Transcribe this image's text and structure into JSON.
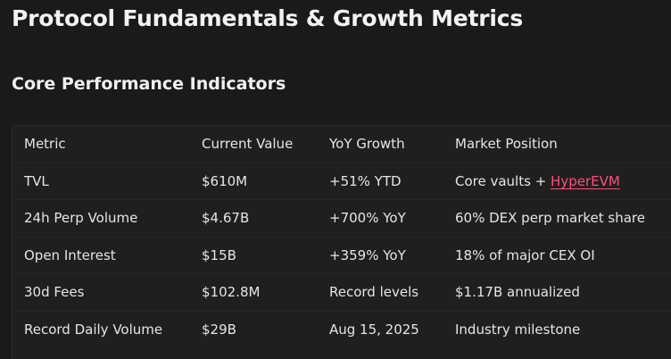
{
  "page": {
    "title": "Protocol Fundamentals & Growth Metrics",
    "section_title": "Core Performance Indicators"
  },
  "table": {
    "headers": [
      "Metric",
      "Current Value",
      "YoY Growth",
      "Market Position"
    ],
    "rows": [
      {
        "metric": "TVL",
        "value": "$610M",
        "growth": "+51% YTD",
        "position_prefix": "Core vaults + ",
        "position_link": "HyperEVM"
      },
      {
        "metric": "24h Perp Volume",
        "value": "$4.67B",
        "growth": "+700% YoY",
        "position": "60% DEX perp market share"
      },
      {
        "metric": "Open Interest",
        "value": "$15B",
        "growth": "+359% YoY",
        "position": "18% of major CEX OI"
      },
      {
        "metric": "30d Fees",
        "value": "$102.8M",
        "growth": "Record levels",
        "position": "$1.17B annualized"
      },
      {
        "metric": "Record Daily Volume",
        "value": "$29B",
        "growth": "Aug 15, 2025",
        "position": "Industry milestone"
      }
    ]
  },
  "colors": {
    "background": "#1a1a1a",
    "table_background": "#1f1f1f",
    "link": "#ff4d7d"
  }
}
